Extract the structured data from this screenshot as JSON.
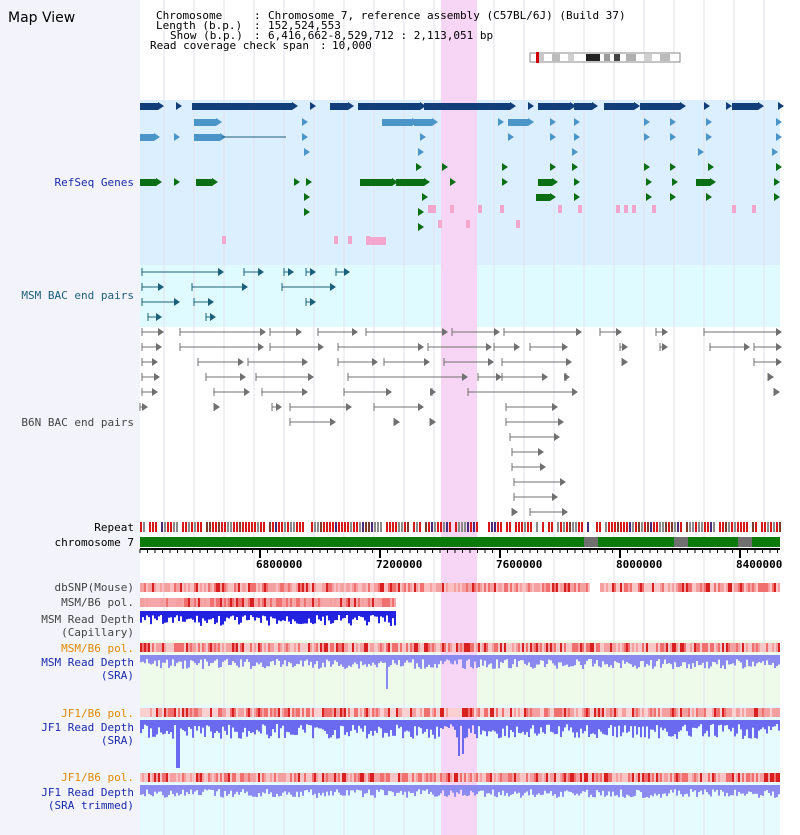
{
  "app": {
    "title": "Map View"
  },
  "info": {
    "chromosome_key": "Chromosome",
    "chromosome_val": "Chromosome 7, reference assembly (C57BL/6J) (Build 37)",
    "length_key": "Length (b.p.)",
    "length_val": "152,524,553",
    "show_key": "Show (b.p.)",
    "show_val": "6,416,662-8,529,712 : 2,113,051 bp",
    "coverage_key": "Read coverage check span",
    "coverage_val": "10,000"
  },
  "tracks": {
    "refseq": "RefSeq Genes",
    "msm_bac": "MSM BAC end pairs",
    "b6n_bac": "B6N BAC end pairs",
    "repeat": "Repeat",
    "chromosome": "chromosome 7",
    "dbsnp": "dbSNP(Mouse)",
    "msm_pol": "MSM/B6 pol.",
    "msm_depth_cap_1": "MSM Read Depth",
    "msm_depth_cap_2": "(Capillary)",
    "msm_pol_sra": "MSM/B6 pol.",
    "msm_depth_sra_1": "MSM Read Depth",
    "msm_depth_sra_2": "(SRA)",
    "jf1_pol": "JF1/B6 pol.",
    "jf1_depth_1": "JF1 Read Depth",
    "jf1_depth_2": "(SRA)",
    "jf1_pol_trim": "JF1/B6 pol.",
    "jf1_trim_1": "JF1 Read Depth",
    "jf1_trim_2": "(SRA trimmed)"
  },
  "axis": {
    "ticks": [
      "6800000",
      "7200000",
      "7600000",
      "8000000",
      "8400000"
    ]
  },
  "colors": {
    "refseq_bg": "#dcefff",
    "msm_bg": "#e0fbff",
    "highlight": "#f7d5f5",
    "chromosome_bar": "#0a7a0a",
    "depth_blue": "#3a3ae8"
  }
}
